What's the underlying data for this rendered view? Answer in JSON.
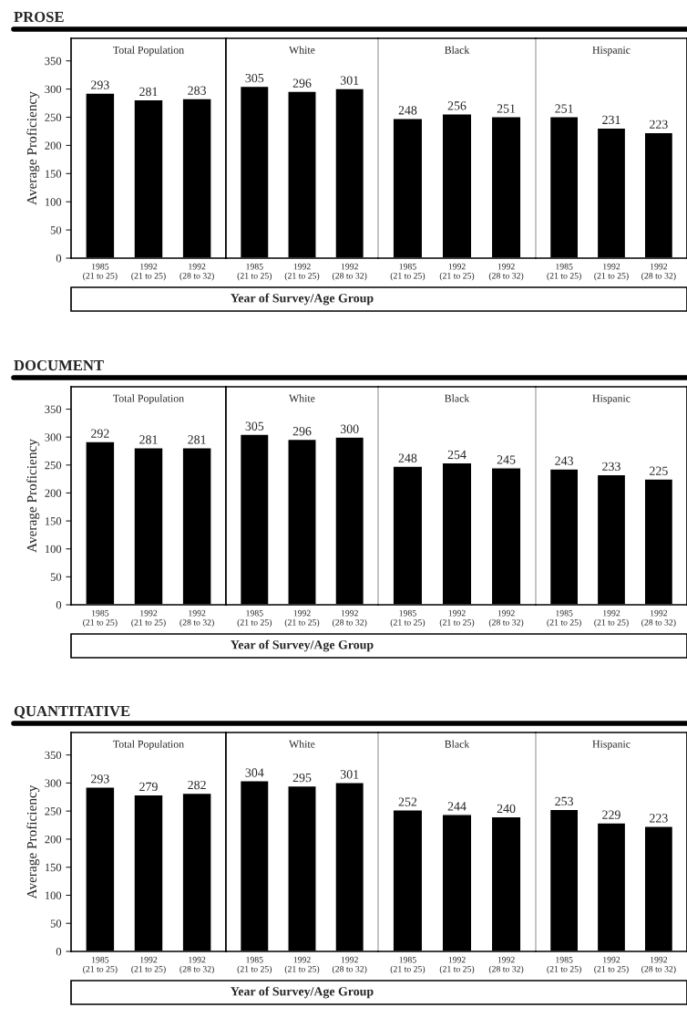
{
  "chart_data": [
    {
      "type": "bar",
      "title": "Total Population",
      "annotations": [
        "PROSE"
      ],
      "ylabel": "Average Proficiency",
      "categories": [
        "1985\n(21 to 25)",
        "1992\n(21 to 25)",
        "1992\n(28 to 32)"
      ],
      "values": [
        293,
        281,
        283
      ],
      "color": "#000000",
      "data_labels": true,
      "ylim": [
        0,
        390
      ],
      "yticks": [
        0,
        50,
        100,
        150,
        200,
        250,
        300,
        350
      ]
    },
    {
      "type": "bar",
      "title": "White",
      "xlabel": "Year of Survey/Age Group",
      "categories": [
        "1985\n(21 to 25)",
        "1992\n(21 to 25)",
        "1992\n(28 to 32)"
      ],
      "values": [
        305,
        296,
        301
      ],
      "color": "#000000",
      "data_labels": true,
      "ylim": [
        0,
        390
      ],
      "tick_labels": "x"
    },
    {
      "type": "bar",
      "title": "Black",
      "categories": [
        "1985\n(21 to 25)",
        "1992\n(21 to 25)",
        "1992\n(28 to 32)"
      ],
      "values": [
        248,
        256,
        251
      ],
      "color": "#000000",
      "data_labels": true,
      "ylim": [
        0,
        390
      ],
      "tick_labels": "x"
    },
    {
      "type": "bar",
      "title": "Hispanic",
      "categories": [
        "1985\n(21 to 25)",
        "1992\n(21 to 25)",
        "1992\n(28 to 32)"
      ],
      "values": [
        251,
        231,
        223
      ],
      "color": "#000000",
      "data_labels": true,
      "ylim": [
        0,
        390
      ],
      "tick_labels": "x"
    },
    {
      "type": "bar",
      "title": "Total Population",
      "annotations": [
        "DOCUMENT"
      ],
      "ylabel": "Average Proficiency",
      "categories": [
        "1985\n(21 to 25)",
        "1992\n(21 to 25)",
        "1992\n(28 to 32)"
      ],
      "values": [
        292,
        281,
        281
      ],
      "color": "#000000",
      "data_labels": true,
      "ylim": [
        0,
        390
      ],
      "yticks": [
        0,
        50,
        100,
        150,
        200,
        250,
        300,
        350
      ]
    },
    {
      "type": "bar",
      "title": "White",
      "xlabel": "Year of Survey/Age Group",
      "categories": [
        "1985\n(21 to 25)",
        "1992\n(21 to 25)",
        "1992\n(28 to 32)"
      ],
      "values": [
        305,
        296,
        300
      ],
      "color": "#000000",
      "data_labels": true,
      "ylim": [
        0,
        390
      ],
      "tick_labels": "x"
    },
    {
      "type": "bar",
      "title": "Black",
      "categories": [
        "1985\n(21 to 25)",
        "1992\n(21 to 25)",
        "1992\n(28 to 32)"
      ],
      "values": [
        248,
        254,
        245
      ],
      "color": "#000000",
      "data_labels": true,
      "ylim": [
        0,
        390
      ],
      "tick_labels": "x"
    },
    {
      "type": "bar",
      "title": "Hispanic",
      "categories": [
        "1985\n(21 to 25)",
        "1992\n(21 to 25)",
        "1992\n(28 to 32)"
      ],
      "values": [
        243,
        233,
        225
      ],
      "color": "#000000",
      "data_labels": true,
      "ylim": [
        0,
        390
      ],
      "tick_labels": "x"
    },
    {
      "type": "bar",
      "title": "Total Population",
      "annotations": [
        "QUANTITATIVE"
      ],
      "ylabel": "Average Proficiency",
      "categories": [
        "1985\n(21 to 25)",
        "1992\n(21 to 25)",
        "1992\n(28 to 32)"
      ],
      "values": [
        293,
        279,
        282
      ],
      "color": "#000000",
      "data_labels": true,
      "ylim": [
        0,
        390
      ],
      "yticks": [
        0,
        50,
        100,
        150,
        200,
        250,
        300,
        350
      ]
    },
    {
      "type": "bar",
      "title": "White",
      "xlabel": "Year of Survey/Age Group",
      "categories": [
        "1985\n(21 to 25)",
        "1992\n(21 to 25)",
        "1992\n(28 to 32)"
      ],
      "values": [
        304,
        295,
        301
      ],
      "color": "#000000",
      "data_labels": true,
      "ylim": [
        0,
        390
      ],
      "tick_labels": "x"
    },
    {
      "type": "bar",
      "title": "Black",
      "categories": [
        "1985\n(21 to 25)",
        "1992\n(21 to 25)",
        "1992\n(28 to 32)"
      ],
      "values": [
        252,
        244,
        240
      ],
      "color": "#000000",
      "data_labels": true,
      "ylim": [
        0,
        390
      ],
      "tick_labels": "x"
    },
    {
      "type": "bar",
      "title": "Hispanic",
      "categories": [
        "1985\n(21 to 25)",
        "1992\n(21 to 25)",
        "1992\n(28 to 32)"
      ],
      "values": [
        253,
        229,
        223
      ],
      "color": "#000000",
      "data_labels": true,
      "ylim": [
        0,
        390
      ],
      "tick_labels": "x"
    }
  ]
}
